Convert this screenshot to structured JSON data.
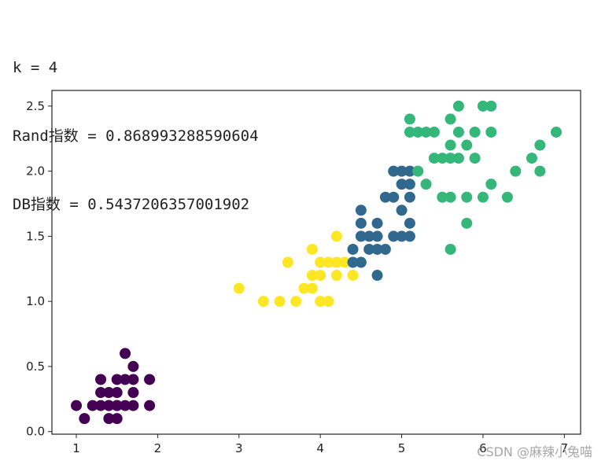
{
  "output_lines": [
    "k = 4",
    "Rand指数 = 0.868993288590604",
    "DB指数 = 0.5437206357001902"
  ],
  "watermark": "CSDN @麻辣小兔喵",
  "chart_data": {
    "type": "scatter",
    "title": "",
    "xlabel": "",
    "ylabel": "",
    "xlim": [
      0.7,
      7.2
    ],
    "ylim": [
      -0.02,
      2.62
    ],
    "xticks": [
      1,
      2,
      3,
      4,
      5,
      6,
      7
    ],
    "yticks": [
      0.0,
      0.5,
      1.0,
      1.5,
      2.0,
      2.5
    ],
    "ytick_labels": [
      "0.0",
      "0.5",
      "1.0",
      "1.5",
      "2.0",
      "2.5"
    ],
    "grid": false,
    "legend": "none",
    "series": [
      {
        "color": "#440154",
        "points": [
          [
            1.0,
            0.2
          ],
          [
            1.1,
            0.1
          ],
          [
            1.2,
            0.2
          ],
          [
            1.3,
            0.2
          ],
          [
            1.4,
            0.2
          ],
          [
            1.5,
            0.2
          ],
          [
            1.6,
            0.2
          ],
          [
            1.7,
            0.2
          ],
          [
            1.3,
            0.3
          ],
          [
            1.4,
            0.3
          ],
          [
            1.5,
            0.3
          ],
          [
            1.3,
            0.4
          ],
          [
            1.5,
            0.4
          ],
          [
            1.6,
            0.4
          ],
          [
            1.7,
            0.4
          ],
          [
            1.9,
            0.4
          ],
          [
            1.4,
            0.1
          ],
          [
            1.5,
            0.1
          ],
          [
            1.9,
            0.2
          ],
          [
            1.7,
            0.3
          ],
          [
            1.7,
            0.5
          ],
          [
            1.6,
            0.6
          ],
          [
            1.4,
            0.2
          ],
          [
            1.5,
            0.2
          ]
        ]
      },
      {
        "color": "#fde725",
        "points": [
          [
            3.0,
            1.1
          ],
          [
            3.3,
            1.0
          ],
          [
            3.5,
            1.0
          ],
          [
            3.7,
            1.0
          ],
          [
            4.0,
            1.0
          ],
          [
            4.1,
            1.0
          ],
          [
            3.8,
            1.1
          ],
          [
            3.9,
            1.1
          ],
          [
            3.9,
            1.2
          ],
          [
            4.0,
            1.2
          ],
          [
            4.2,
            1.2
          ],
          [
            4.4,
            1.2
          ],
          [
            3.6,
            1.3
          ],
          [
            4.0,
            1.3
          ],
          [
            4.1,
            1.3
          ],
          [
            4.2,
            1.3
          ],
          [
            4.3,
            1.3
          ],
          [
            4.4,
            1.3
          ],
          [
            3.9,
            1.4
          ],
          [
            4.2,
            1.5
          ]
        ]
      },
      {
        "color": "#31688e",
        "points": [
          [
            4.4,
            1.3
          ],
          [
            4.5,
            1.3
          ],
          [
            4.4,
            1.4
          ],
          [
            4.6,
            1.4
          ],
          [
            4.7,
            1.4
          ],
          [
            4.8,
            1.4
          ],
          [
            4.5,
            1.5
          ],
          [
            4.6,
            1.5
          ],
          [
            4.7,
            1.5
          ],
          [
            4.9,
            1.5
          ],
          [
            5.0,
            1.5
          ],
          [
            5.1,
            1.5
          ],
          [
            4.5,
            1.6
          ],
          [
            4.7,
            1.6
          ],
          [
            5.1,
            1.6
          ],
          [
            4.5,
            1.7
          ],
          [
            5.0,
            1.7
          ],
          [
            4.8,
            1.8
          ],
          [
            4.9,
            1.8
          ],
          [
            5.1,
            1.8
          ],
          [
            5.0,
            1.9
          ],
          [
            5.1,
            1.9
          ],
          [
            4.9,
            2.0
          ],
          [
            5.0,
            2.0
          ],
          [
            5.1,
            2.0
          ],
          [
            4.7,
            1.2
          ]
        ]
      },
      {
        "color": "#35b779",
        "points": [
          [
            5.6,
            1.4
          ],
          [
            5.8,
            1.6
          ],
          [
            5.5,
            1.8
          ],
          [
            5.6,
            1.8
          ],
          [
            5.8,
            1.8
          ],
          [
            6.0,
            1.8
          ],
          [
            6.3,
            1.8
          ],
          [
            6.1,
            1.9
          ],
          [
            5.3,
            1.9
          ],
          [
            5.2,
            2.0
          ],
          [
            6.4,
            2.0
          ],
          [
            6.7,
            2.0
          ],
          [
            5.4,
            2.1
          ],
          [
            5.5,
            2.1
          ],
          [
            5.6,
            2.1
          ],
          [
            5.7,
            2.1
          ],
          [
            5.9,
            2.1
          ],
          [
            6.6,
            2.1
          ],
          [
            5.6,
            2.2
          ],
          [
            5.8,
            2.2
          ],
          [
            6.7,
            2.2
          ],
          [
            5.1,
            2.3
          ],
          [
            5.2,
            2.3
          ],
          [
            5.3,
            2.3
          ],
          [
            5.4,
            2.3
          ],
          [
            5.7,
            2.3
          ],
          [
            5.9,
            2.3
          ],
          [
            6.1,
            2.3
          ],
          [
            6.9,
            2.3
          ],
          [
            5.1,
            2.4
          ],
          [
            5.6,
            2.4
          ],
          [
            5.7,
            2.5
          ],
          [
            6.0,
            2.5
          ],
          [
            6.1,
            2.5
          ]
        ]
      }
    ]
  }
}
